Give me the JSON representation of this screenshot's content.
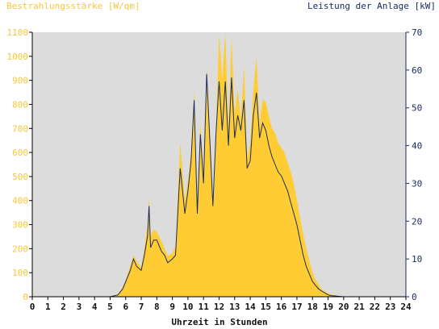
{
  "chart_data": {
    "type": "area",
    "left_axis_label": "Bestrahlungsstärke [W/qm]",
    "right_axis_label": "Leistung der Anlage [kW]",
    "xlabel": "Uhrzeit in Stunden",
    "xlim": [
      0,
      24
    ],
    "ylim_left": [
      0,
      1100
    ],
    "ylim_right": [
      0,
      70
    ],
    "x_ticks": [
      "0",
      "1",
      "2",
      "3",
      "4",
      "5",
      "6",
      "7",
      "8",
      "9",
      "10",
      "11",
      "12",
      "13",
      "14",
      "15",
      "16",
      "17",
      "18",
      "19",
      "20",
      "21",
      "22",
      "23",
      "24"
    ],
    "y_left_ticks": [
      "0",
      "100",
      "200",
      "300",
      "400",
      "500",
      "600",
      "700",
      "800",
      "900",
      "1000",
      "1100"
    ],
    "y_right_ticks": [
      "0",
      "10",
      "20",
      "30",
      "40",
      "50",
      "60",
      "70"
    ],
    "colors": {
      "irradiance": "#ffcc33",
      "power": "#1a2d63",
      "plot_bg": "#dcdcdc",
      "left_axis_text": "#f7c736",
      "right_axis_text": "#1a2d63"
    },
    "grid": false,
    "series": [
      {
        "name": "Bestrahlungsstärke [W/qm]",
        "axis": "left",
        "x": [
          0,
          5.0,
          5.5,
          5.8,
          6.0,
          6.3,
          6.5,
          6.7,
          7.0,
          7.2,
          7.4,
          7.5,
          7.6,
          7.8,
          8.0,
          8.3,
          8.5,
          8.7,
          9.0,
          9.2,
          9.5,
          9.8,
          10.0,
          10.2,
          10.4,
          10.6,
          10.8,
          11.0,
          11.2,
          11.4,
          11.6,
          11.8,
          12.0,
          12.2,
          12.4,
          12.6,
          12.8,
          13.0,
          13.2,
          13.4,
          13.6,
          13.8,
          14.0,
          14.2,
          14.4,
          14.6,
          14.8,
          15.0,
          15.2,
          15.4,
          15.6,
          15.8,
          16.0,
          16.2,
          16.4,
          16.6,
          16.8,
          17.0,
          17.2,
          17.4,
          17.6,
          17.8,
          18.0,
          18.2,
          18.4,
          18.6,
          18.8,
          19.0,
          19.2,
          19.5,
          20.0,
          20.3,
          24
        ],
        "values": [
          0,
          0,
          10,
          40,
          70,
          130,
          170,
          150,
          120,
          200,
          300,
          420,
          250,
          280,
          270,
          230,
          200,
          170,
          180,
          210,
          640,
          400,
          480,
          600,
          860,
          360,
          720,
          520,
          950,
          680,
          400,
          700,
          1090,
          900,
          1100,
          700,
          1080,
          760,
          860,
          740,
          960,
          580,
          640,
          860,
          1000,
          720,
          820,
          810,
          750,
          700,
          680,
          640,
          620,
          600,
          560,
          520,
          470,
          400,
          330,
          260,
          200,
          150,
          100,
          70,
          50,
          30,
          20,
          15,
          10,
          5,
          0,
          0,
          0
        ]
      },
      {
        "name": "Leistung der Anlage [kW]",
        "axis": "right",
        "x": [
          0,
          5.0,
          5.5,
          5.8,
          6.0,
          6.3,
          6.5,
          6.7,
          7.0,
          7.2,
          7.4,
          7.5,
          7.6,
          7.8,
          8.0,
          8.3,
          8.5,
          8.7,
          9.0,
          9.2,
          9.5,
          9.8,
          10.0,
          10.2,
          10.4,
          10.6,
          10.8,
          11.0,
          11.2,
          11.4,
          11.6,
          11.8,
          12.0,
          12.2,
          12.4,
          12.6,
          12.8,
          13.0,
          13.2,
          13.4,
          13.6,
          13.8,
          14.0,
          14.2,
          14.4,
          14.6,
          14.8,
          15.0,
          15.2,
          15.4,
          15.6,
          15.8,
          16.0,
          16.2,
          16.4,
          16.6,
          16.8,
          17.0,
          17.2,
          17.4,
          17.6,
          17.8,
          18.0,
          18.2,
          18.4,
          18.6,
          18.8,
          19.0,
          19.2,
          19.5,
          20.0,
          20.3,
          24
        ],
        "values": [
          0,
          0,
          0.5,
          2,
          4,
          7,
          10,
          8,
          7,
          11,
          16,
          24,
          13,
          15,
          15,
          12,
          11,
          9,
          10,
          11,
          34,
          22,
          28,
          36,
          52,
          22,
          43,
          30,
          59,
          42,
          24,
          43,
          57,
          44,
          57,
          40,
          58,
          42,
          48,
          44,
          52,
          34,
          36,
          48,
          54,
          42,
          46,
          44,
          40,
          37,
          35,
          33,
          32,
          30,
          28,
          25,
          22,
          19,
          15,
          11,
          8,
          6,
          4,
          3,
          2,
          1.5,
          1,
          0.5,
          0.3,
          0.2,
          0,
          0,
          0
        ]
      }
    ]
  }
}
